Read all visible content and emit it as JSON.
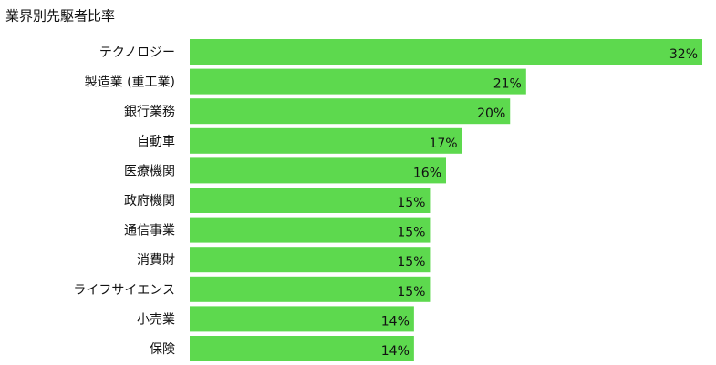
{
  "chart_data": {
    "type": "hbar",
    "title": "業界別先駆者比率",
    "categories": [
      "テクノロジー",
      "製造業 (重工業)",
      "銀行業務",
      "自動車",
      "医療機関",
      "政府機関",
      "通信事業",
      "消費財",
      "ライフサイエンス",
      "小売業",
      "保険"
    ],
    "values": [
      32,
      21,
      20,
      17,
      16,
      15,
      15,
      15,
      15,
      14,
      14
    ],
    "value_labels": [
      "32%",
      "21%",
      "20%",
      "17%",
      "16%",
      "15%",
      "15%",
      "15%",
      "15%",
      "14%",
      "14%"
    ],
    "color": "#5dd94e"
  }
}
